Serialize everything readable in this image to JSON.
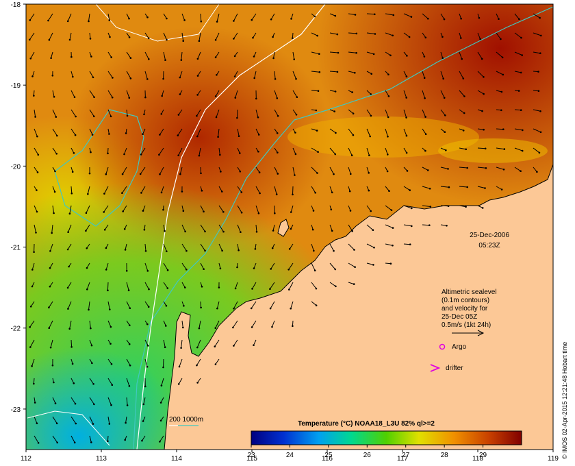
{
  "map": {
    "lon_range": [
      112,
      119
    ],
    "lat_range": [
      -23.5,
      -18
    ],
    "lon_ticks": [
      "112",
      "113",
      "114",
      "115",
      "116",
      "117",
      "118",
      "119"
    ],
    "lat_ticks": [
      "-18",
      "-19",
      "-20",
      "-21",
      "-22",
      "-23"
    ]
  },
  "date_label": "25-Dec-2006",
  "time_label": "05:23Z",
  "legend": {
    "line1": "Altimetric sealevel",
    "line2": "(0.1m contours)",
    "line3": "and velocity for",
    "line4": "25-Dec 05Z",
    "line5": "0.5m/s (1kt 24h)",
    "argo_label": "Argo",
    "drifter_label": "drifter"
  },
  "depth_legend": "200  1000m",
  "colorbar": {
    "title": "Temperature (°C) NOAA18_L3U 82% ql>=2",
    "min": 23,
    "max": 30,
    "tick_labels": [
      "23",
      "24",
      "25",
      "26",
      "27",
      "28",
      "29"
    ]
  },
  "credit": "© IMOS 02-Apr-2015 12:21:48 Hobart time",
  "colors": {
    "land": "#fcc896",
    "isobath_200": "#40c8c0",
    "isobath_1000": "#ffffff",
    "argo": "#e000e0",
    "drifter": "#e000e0"
  }
}
